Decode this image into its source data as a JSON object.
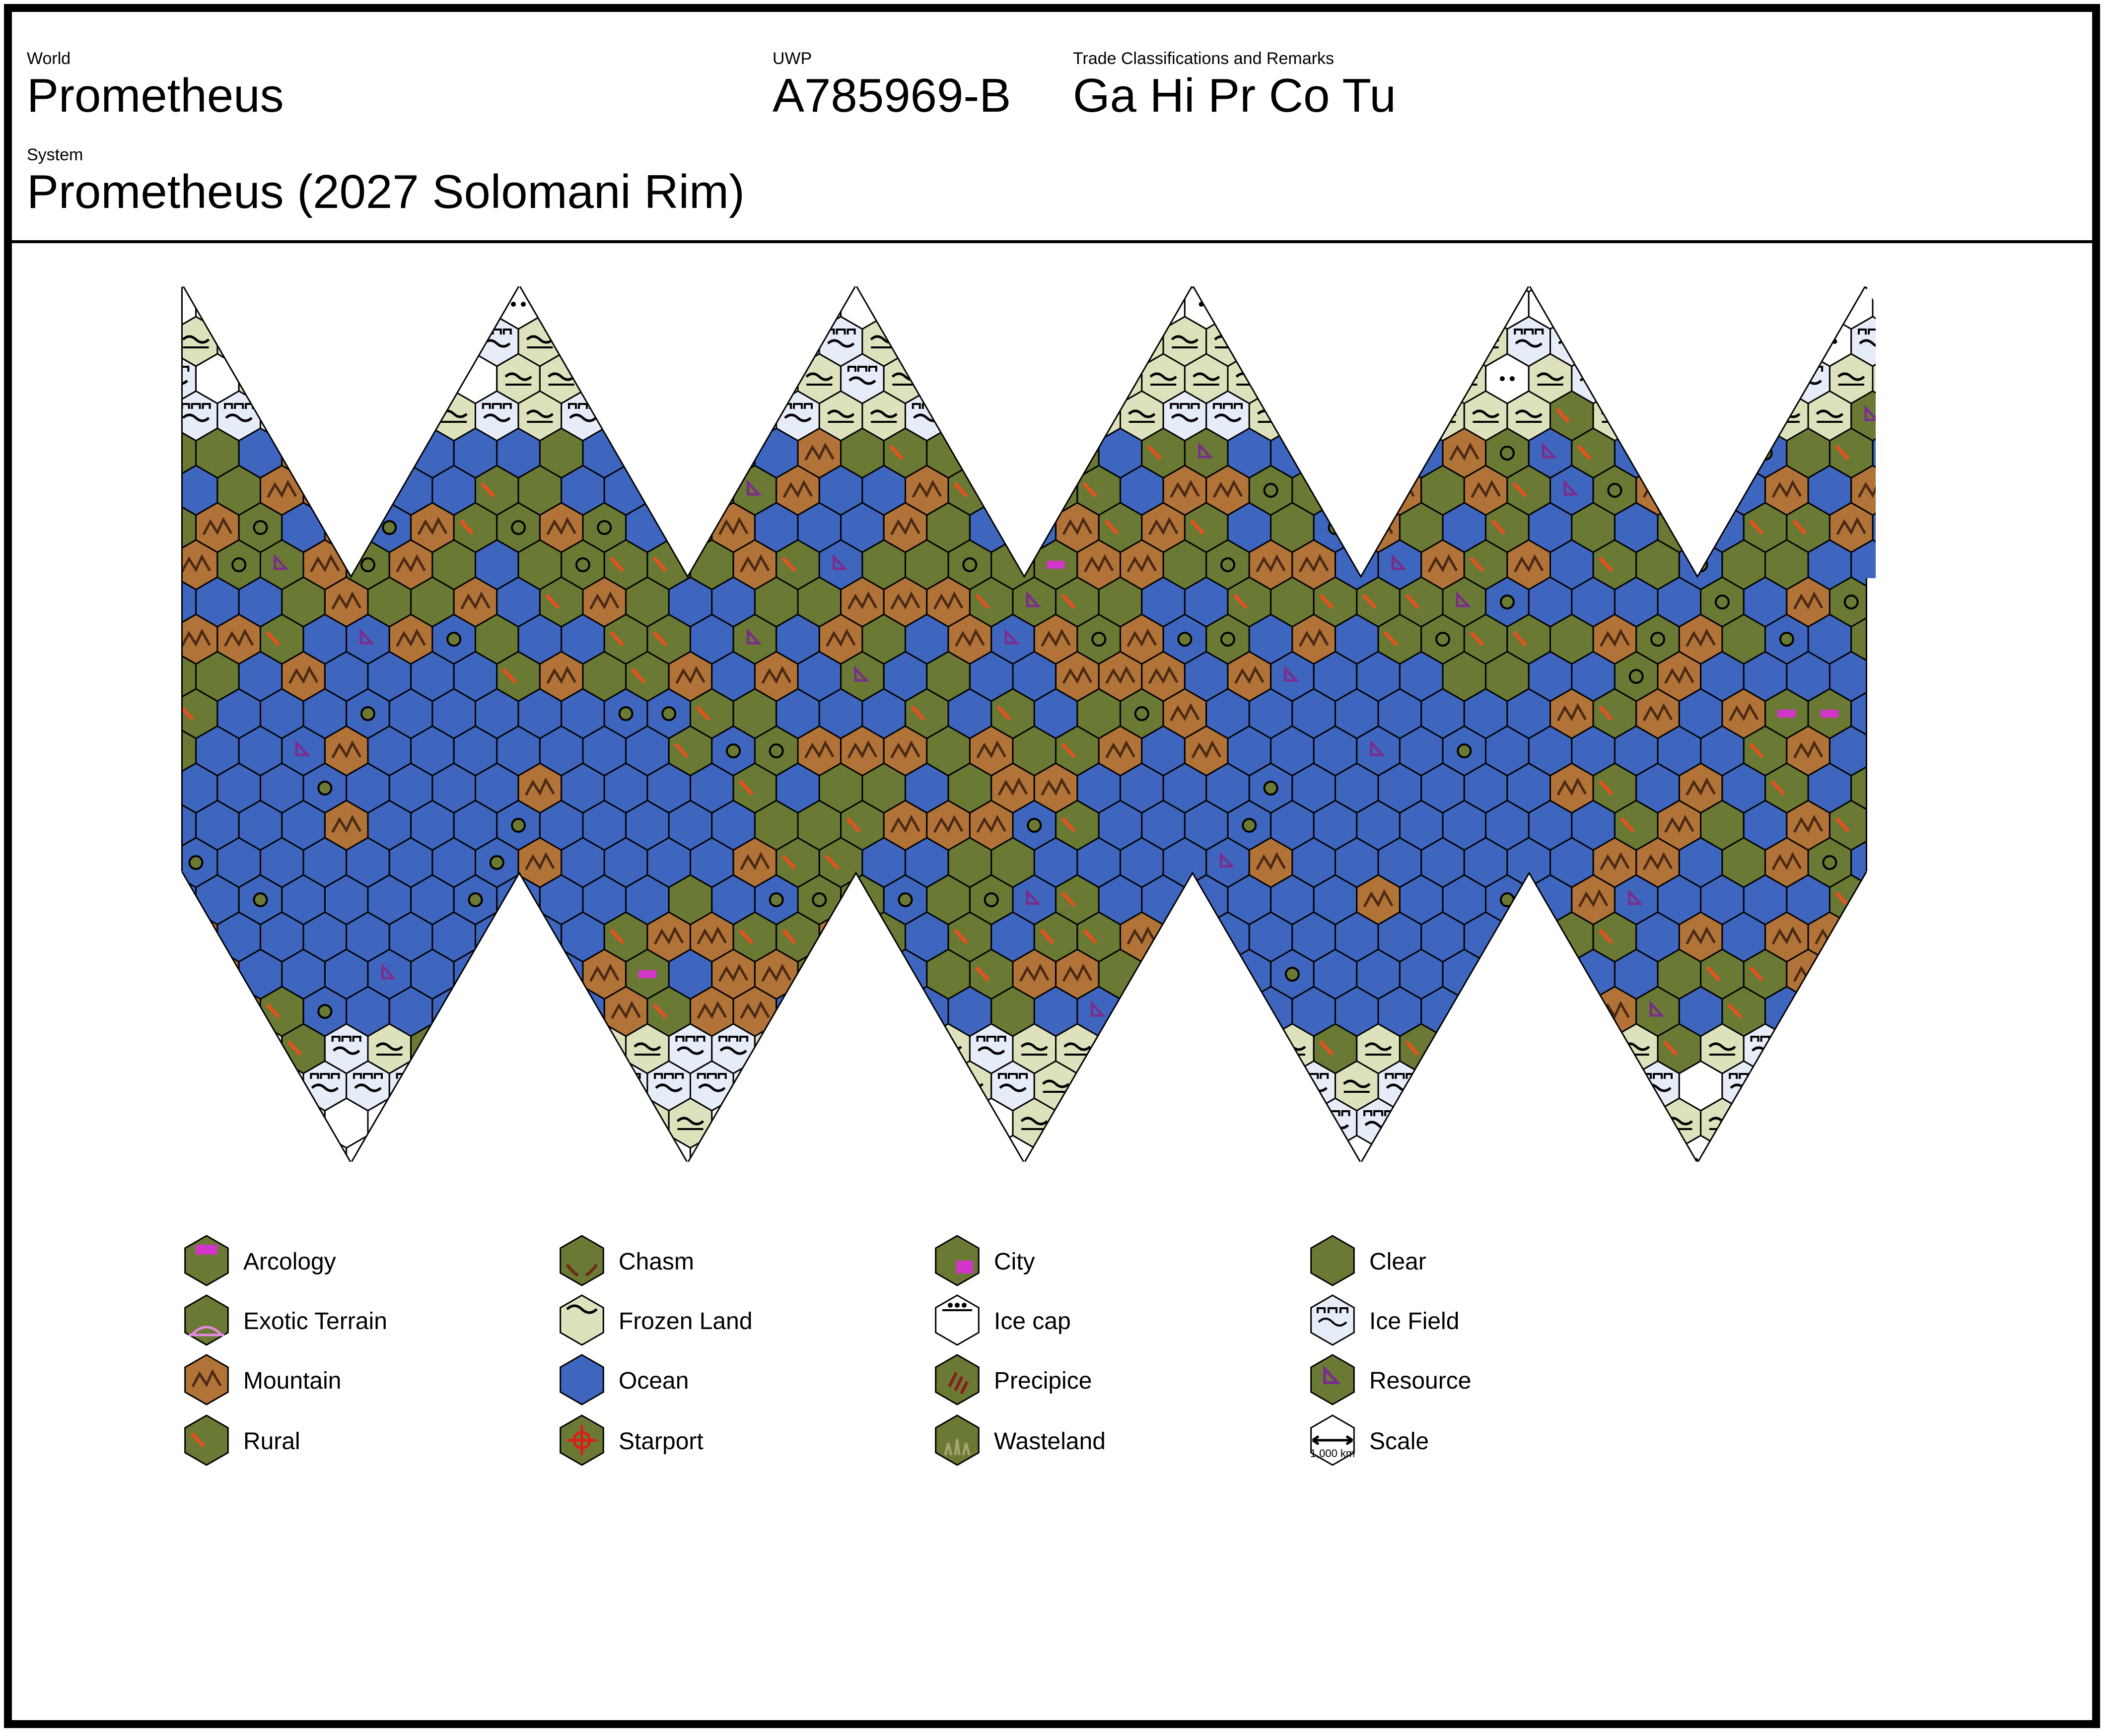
{
  "header": {
    "world_label": "World",
    "world": "Prometheus",
    "uwp_label": "UWP",
    "uwp": "A785969-B",
    "trade_label": "Trade Classifications and Remarks",
    "trade": "Ga Hi Pr Co Tu",
    "system_label": "System",
    "system": "Prometheus (2027 Solomani Rim)"
  },
  "colors": {
    "clear": "#6a7a34",
    "ocean": "#3f66bf",
    "mountain": "#b27339",
    "frozen": "#dde2bd",
    "icefield": "#e6ecf8",
    "icecap": "#ffffff",
    "arcology": "#d236c8",
    "resource": "#7b2d8c",
    "chasm": "#6e2a1c",
    "precipice": "#8a1c1c",
    "starport": "#e01a1a",
    "exotic": "#e58ae0",
    "wasteland": "#a8a070",
    "rural_mark": "#e8501e"
  },
  "legend": [
    {
      "label": "Arcology",
      "icon": "arcology-icon"
    },
    {
      "label": "Chasm",
      "icon": "chasm-icon"
    },
    {
      "label": "City",
      "icon": "city-icon"
    },
    {
      "label": "Clear",
      "icon": "clear-icon"
    },
    {
      "label": "Exotic Terrain",
      "icon": "exotic-terrain-icon"
    },
    {
      "label": "Frozen Land",
      "icon": "frozen-land-icon"
    },
    {
      "label": "Ice cap",
      "icon": "ice-cap-icon"
    },
    {
      "label": "Ice Field",
      "icon": "ice-field-icon"
    },
    {
      "label": "Mountain",
      "icon": "mountain-icon"
    },
    {
      "label": "Ocean",
      "icon": "ocean-icon"
    },
    {
      "label": "Precipice",
      "icon": "precipice-icon"
    },
    {
      "label": "Resource",
      "icon": "resource-icon"
    },
    {
      "label": "Rural",
      "icon": "rural-icon"
    },
    {
      "label": "Starport",
      "icon": "starport-icon"
    },
    {
      "label": "Wasteland",
      "icon": "wasteland-icon"
    },
    {
      "label": "Scale",
      "icon": "scale-icon",
      "sublabel": "1,000 km"
    }
  ]
}
